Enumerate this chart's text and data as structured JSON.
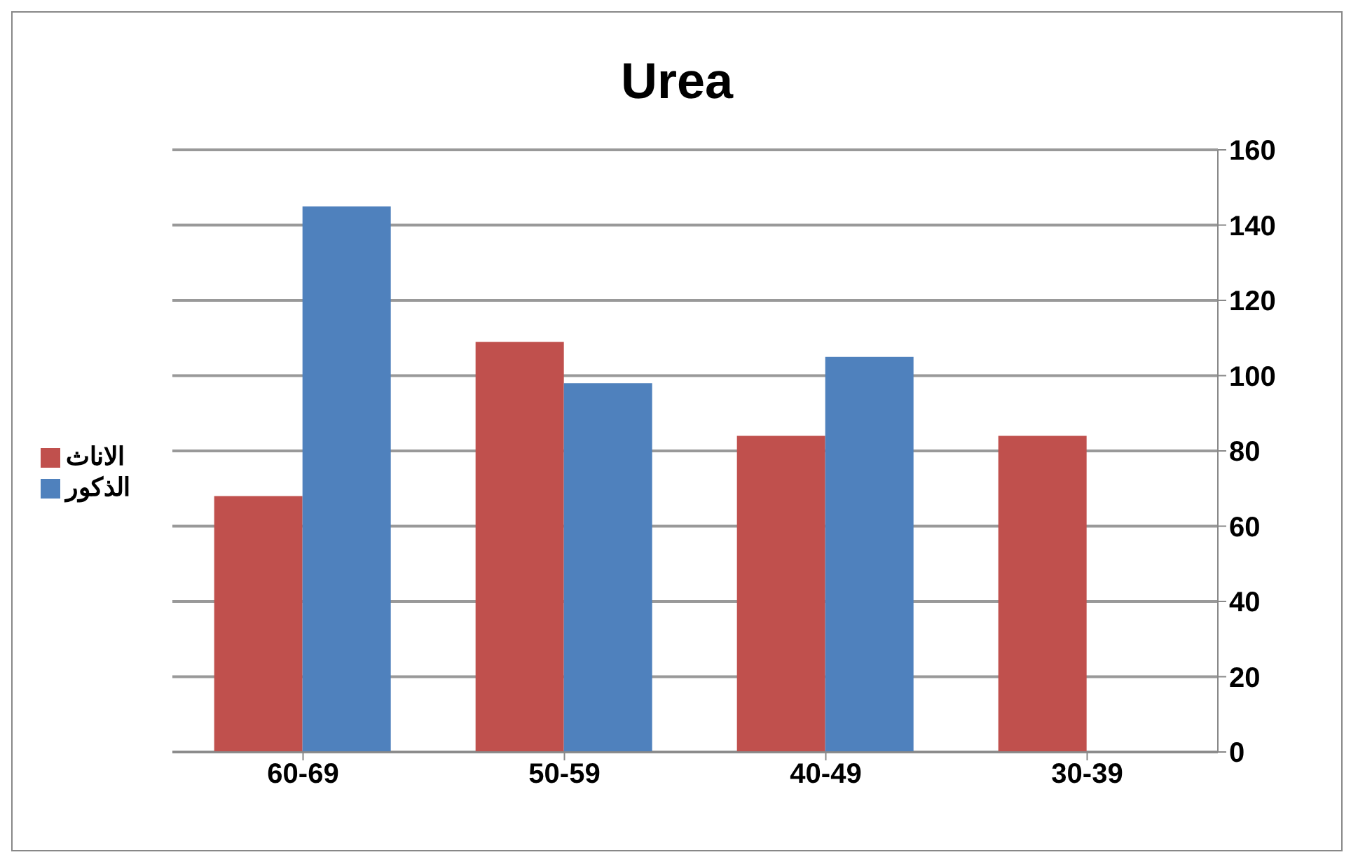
{
  "chart_data": {
    "type": "bar",
    "title": "Urea",
    "categories": [
      "60-69",
      "50-59",
      "40-49",
      "30-39"
    ],
    "series": [
      {
        "name": "الاناث",
        "color": "#c0504d",
        "values": [
          68,
          109,
          84,
          84
        ]
      },
      {
        "name": "الذكور",
        "color": "#4f81bd",
        "values": [
          145,
          98,
          105,
          0
        ]
      }
    ],
    "ylim": [
      0,
      160
    ],
    "yticks": [
      0,
      20,
      40,
      60,
      80,
      100,
      120,
      140,
      160
    ],
    "grid": "y",
    "legend": "left"
  }
}
